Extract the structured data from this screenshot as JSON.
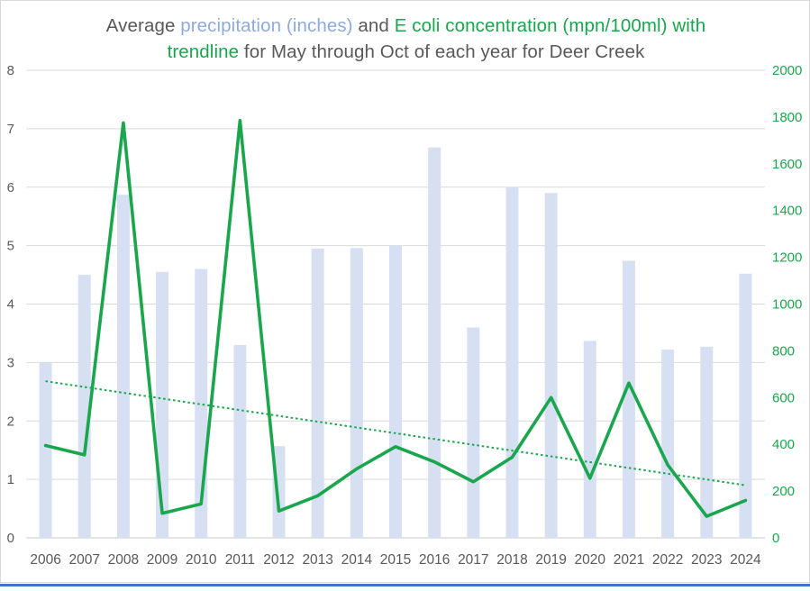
{
  "window": {
    "background": "#FFFFFF",
    "border_color": "#D8D8D8",
    "bottom_edge_color": "#4472C4"
  },
  "title": {
    "segments_line1": [
      {
        "text": "Average ",
        "color": "#595959"
      },
      {
        "text": "precipitation (inches)",
        "color": "#8FAADC"
      },
      {
        "text": " and ",
        "color": "#595959"
      },
      {
        "text": "E coli concentration (mpn/100ml) with",
        "color": "#1AA64D"
      }
    ],
    "segments_line2": [
      {
        "text": "trendline",
        "color": "#1AA64D"
      },
      {
        "text": " for May through Oct of each year for Deer Creek",
        "color": "#595959"
      }
    ]
  },
  "chart_data": {
    "type": "bar",
    "subtype": "combo bar+line, dual axis",
    "title": "Average precipitation (inches) and E coli concentration (mpn/100ml) with trendline for May through Oct of each year for Deer Creek",
    "categories": [
      "2006",
      "2007",
      "2008",
      "2009",
      "2010",
      "2011",
      "2012",
      "2013",
      "2014",
      "2015",
      "2016",
      "2017",
      "2018",
      "2019",
      "2020",
      "2021",
      "2022",
      "2023",
      "2024"
    ],
    "series": [
      {
        "name": "Average precipitation (inches)",
        "chart_type": "bar",
        "axis": "left",
        "color": "#D7E0F3",
        "values": [
          3.0,
          4.5,
          5.87,
          4.55,
          4.6,
          3.3,
          1.57,
          4.95,
          4.96,
          5.0,
          6.68,
          3.6,
          6.0,
          5.9,
          3.37,
          4.74,
          3.22,
          3.27,
          4.52
        ]
      },
      {
        "name": "E coli concentration (mpn/100ml)",
        "chart_type": "line",
        "axis": "right",
        "color": "#1AA64D",
        "values": [
          395,
          355,
          1775,
          105,
          145,
          1785,
          115,
          180,
          295,
          390,
          325,
          240,
          345,
          600,
          255,
          662,
          312,
          92,
          160
        ]
      },
      {
        "name": "E coli trendline",
        "chart_type": "line",
        "style": "dotted",
        "axis": "right",
        "color": "#1AA64D",
        "endpoint_values": [
          670,
          225
        ]
      }
    ],
    "left_axis": {
      "min": 0,
      "max": 8,
      "step": 1,
      "color": "#595959",
      "tick_labels": [
        "0",
        "1",
        "2",
        "3",
        "4",
        "5",
        "6",
        "7",
        "8"
      ]
    },
    "right_axis": {
      "min": 0,
      "max": 2000,
      "step": 200,
      "color": "#1AA64D",
      "tick_labels": [
        "0",
        "200",
        "400",
        "600",
        "800",
        "1000",
        "1200",
        "1400",
        "1600",
        "1800",
        "2000"
      ]
    },
    "x_axis": {
      "color": "#595959",
      "labels": [
        "2006",
        "2007",
        "2008",
        "2009",
        "2010",
        "2011",
        "2012",
        "2013",
        "2014",
        "2015",
        "2016",
        "2017",
        "2018",
        "2019",
        "2020",
        "2021",
        "2022",
        "2023",
        "2024"
      ]
    },
    "grid": true,
    "gridline_color": "#D9D9D9",
    "legend_position": "none (series identified by colored title text)"
  }
}
